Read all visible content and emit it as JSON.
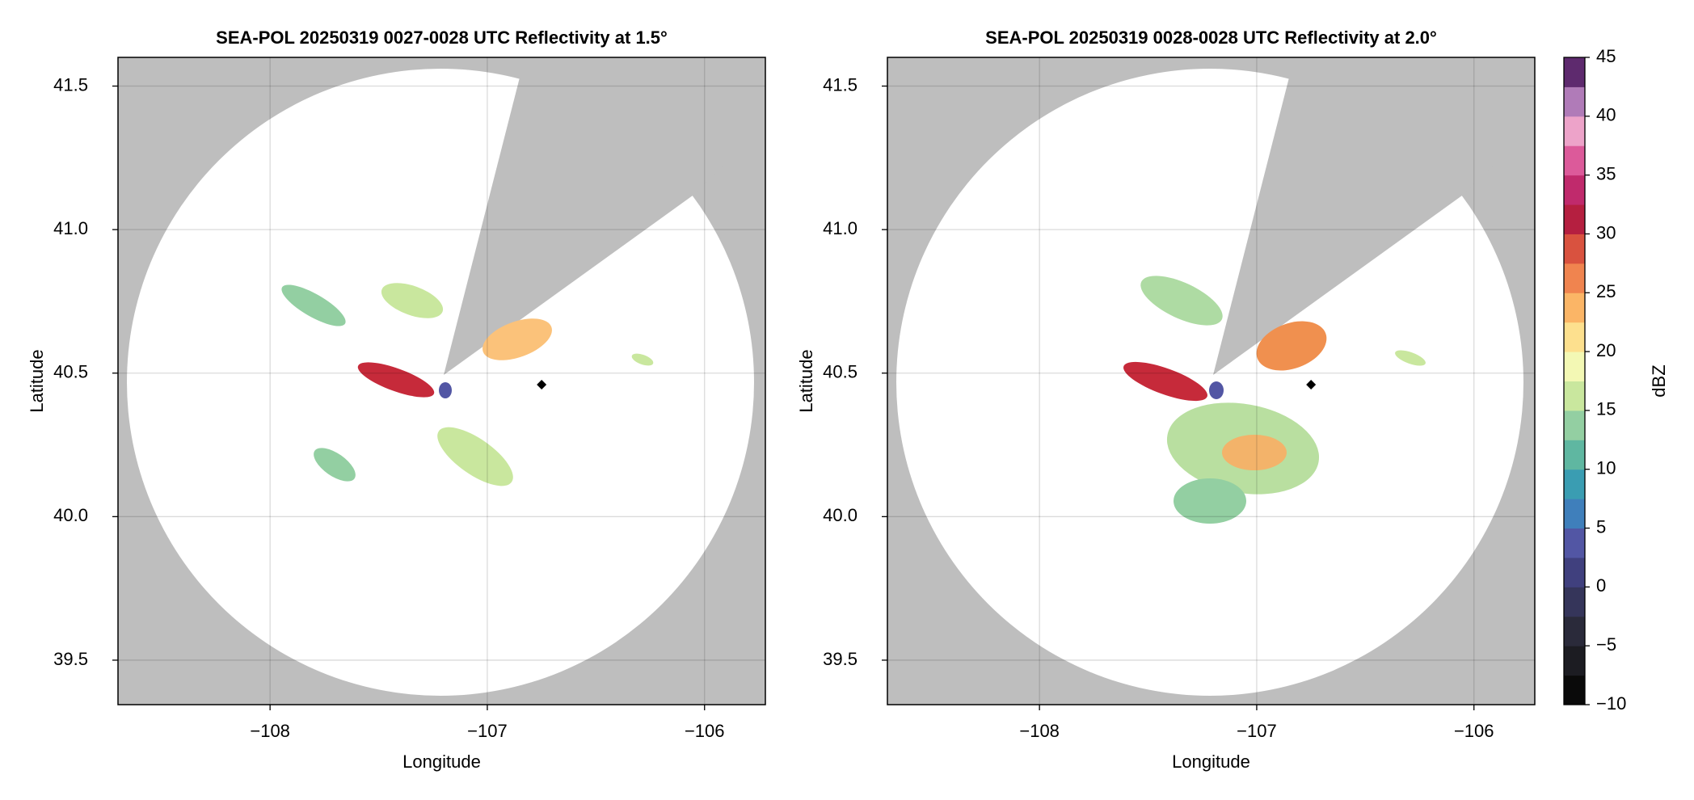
{
  "chart_data": [
    {
      "type": "radar",
      "title": "SEA-POL 20250319 0027-0028 UTC Reflectivity at 1.5°",
      "x_label": "Longitude",
      "y_label": "Latitude",
      "xlim": [
        -108.7,
        -105.72
      ],
      "ylim": [
        39.345,
        41.6
      ],
      "xticks": [
        {
          "value": -108,
          "label": "−108"
        },
        {
          "value": -107,
          "label": "−107"
        },
        {
          "value": -106,
          "label": "−106"
        }
      ],
      "yticks": [
        39.5,
        {
          "value": 40,
          "label": "40.0"
        },
        40.5,
        {
          "value": 41,
          "label": "41.0"
        },
        41.5
      ],
      "grid": true,
      "x": [
        -106.75
      ],
      "values": [
        40.46
      ],
      "color": "#000000"
    },
    {
      "type": "radar",
      "title": "SEA-POL 20250319 0028-0028 UTC Reflectivity at 2.0°",
      "x_label": "Longitude",
      "y_label": "Latitude",
      "xlim": [
        -108.7,
        -105.72
      ],
      "ylim": [
        39.345,
        41.6
      ],
      "xticks": [
        {
          "value": -108,
          "label": "−108"
        },
        {
          "value": -107,
          "label": "−107"
        },
        {
          "value": -106,
          "label": "−106"
        }
      ],
      "yticks": [
        39.5,
        {
          "value": 40,
          "label": "40.0"
        },
        40.5,
        {
          "value": 41,
          "label": "41.0"
        },
        41.5
      ],
      "grid": true,
      "x": [
        -106.75
      ],
      "values": [
        40.46
      ],
      "color": "#000000"
    }
  ],
  "colorbar": {
    "label": "dBZ",
    "lim": [
      -10,
      45
    ],
    "ticks": [
      {
        "value": -10,
        "label": "−10"
      },
      {
        "value": -5,
        "label": "−5"
      },
      0,
      5,
      10,
      15,
      20,
      25,
      30,
      35,
      40,
      45
    ],
    "colors": [
      "#0a0a0a",
      "#1c1c22",
      "#2a2a3a",
      "#35355a",
      "#40407e",
      "#5256a4",
      "#3f7fbb",
      "#3a9db2",
      "#5fb7a1",
      "#93cfa2",
      "#c9e79e",
      "#f3f8b4",
      "#fde08e",
      "#fbb566",
      "#f0844f",
      "#d9523f",
      "#b51f40",
      "#c02a6c",
      "#dc5a9a",
      "#eda3c9",
      "#b07bb8",
      "#5e2a6e"
    ]
  }
}
